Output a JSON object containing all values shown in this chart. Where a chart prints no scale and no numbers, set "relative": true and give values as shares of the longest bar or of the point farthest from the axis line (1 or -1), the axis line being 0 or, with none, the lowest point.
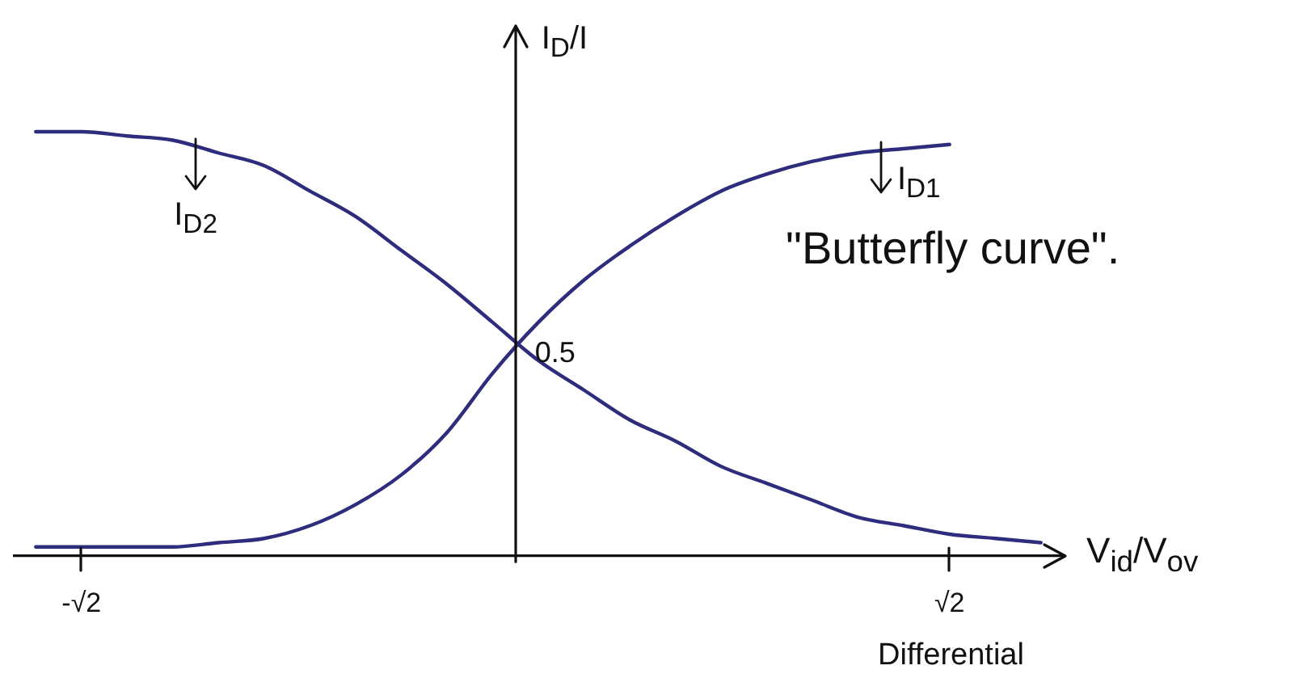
{
  "chart_data": {
    "type": "line",
    "xlabel": "V$_{id}$/V$_{ov}$",
    "ylabel": "I$_{D}$/I",
    "relative": true,
    "categories": [
      null,
      "-√2",
      null,
      null,
      null,
      null,
      null,
      null,
      null,
      null,
      null,
      null,
      null,
      null,
      null,
      null,
      null,
      null,
      null,
      null,
      "√2",
      null,
      null
    ],
    "series": [
      {
        "name": "I$_{D1}$",
        "color": "#2e2c7c",
        "values": [
          0.02,
          0.02,
          0.02,
          0.02,
          0.03,
          0.04,
          0.07,
          0.12,
          0.19,
          0.29,
          0.43,
          0.55,
          0.65,
          0.73,
          0.8,
          0.86,
          0.9,
          0.93,
          0.95,
          0.96,
          0.97,
          null,
          null
        ]
      },
      {
        "name": "I$_{D2}$",
        "color": "#2e2c7c",
        "values": [
          1,
          1,
          0.99,
          0.98,
          0.95,
          0.92,
          0.86,
          0.8,
          0.72,
          0.64,
          0.55,
          0.46,
          0.39,
          0.32,
          0.27,
          0.21,
          0.17,
          0.13,
          0.09,
          0.07,
          0.05,
          0.04,
          0.03
        ]
      }
    ],
    "annotations": [
      "0.5",
      "\"Butterfly curve\".",
      "Differential"
    ],
    "grid": false,
    "legend": false,
    "marker": "none"
  }
}
